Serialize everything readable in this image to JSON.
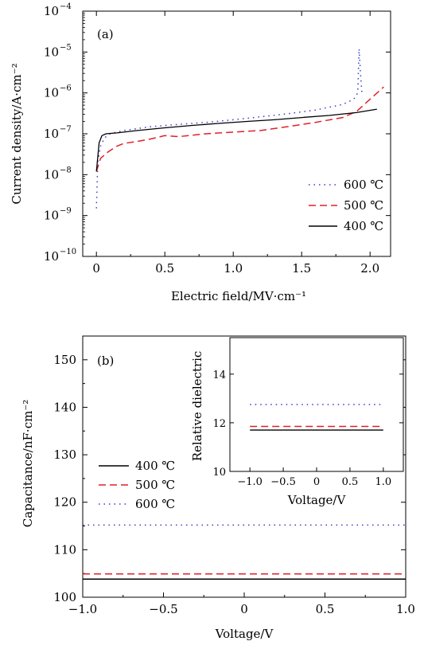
{
  "chart_data": [
    {
      "type": "line",
      "panel_label": "(a)",
      "xlabel": "Electric field/MV·cm⁻¹",
      "ylabel": "Current density/A·cm⁻²",
      "x_scale": "linear",
      "y_scale": "log",
      "xlim": [
        -0.1,
        2.15
      ],
      "ylim": [
        1e-10,
        0.0001
      ],
      "x_ticks": [
        {
          "value": 0.0,
          "label": "0"
        },
        {
          "value": 0.5,
          "label": "0.5"
        },
        {
          "value": 1.0,
          "label": "1.0"
        },
        {
          "value": 1.5,
          "label": "1.5"
        },
        {
          "value": 2.0,
          "label": "2.0"
        }
      ],
      "y_ticks": [
        {
          "value": 1e-10,
          "base": "10",
          "exp": "−10"
        },
        {
          "value": 1e-09,
          "base": "10",
          "exp": "−9"
        },
        {
          "value": 1e-08,
          "base": "10",
          "exp": "−8"
        },
        {
          "value": 1e-07,
          "base": "10",
          "exp": "−7"
        },
        {
          "value": 1e-06,
          "base": "10",
          "exp": "−6"
        },
        {
          "value": 1e-05,
          "base": "10",
          "exp": "−5"
        },
        {
          "value": 0.0001,
          "base": "10",
          "exp": "−4"
        }
      ],
      "legend_position": "bottom-right",
      "series": [
        {
          "name": "600 ℃",
          "color": "#3a3ac8",
          "dash": "dotted",
          "x": [
            0.0,
            0.01,
            0.03,
            0.06,
            0.1,
            0.2,
            0.4,
            0.6,
            0.8,
            1.0,
            1.2,
            1.4,
            1.6,
            1.8,
            1.88,
            1.91,
            1.92,
            1.93,
            1.94
          ],
          "y": [
            1.5e-09,
            2e-08,
            5e-08,
            8e-08,
            1e-07,
            1.2e-07,
            1.5e-07,
            1.7e-07,
            1.9e-07,
            2.2e-07,
            2.6e-07,
            3.1e-07,
            3.8e-07,
            5.2e-07,
            7e-07,
            1e-06,
            1.2e-05,
            3e-06,
            1e-06
          ]
        },
        {
          "name": "500 ℃",
          "color": "#e0202a",
          "dash": "dashed",
          "x": [
            0.0,
            0.03,
            0.08,
            0.15,
            0.2,
            0.3,
            0.4,
            0.5,
            0.6,
            0.8,
            1.0,
            1.2,
            1.4,
            1.6,
            1.8,
            1.9,
            2.0,
            2.1
          ],
          "y": [
            1.2e-08,
            2.5e-08,
            3.5e-08,
            5e-08,
            5.8e-08,
            6.5e-08,
            7.5e-08,
            9e-08,
            8.5e-08,
            1e-07,
            1.1e-07,
            1.2e-07,
            1.5e-07,
            1.9e-07,
            2.5e-07,
            3.5e-07,
            7e-07,
            1.4e-06
          ]
        },
        {
          "name": "400 ℃",
          "color": "#000000",
          "dash": "solid",
          "x": [
            0.0,
            0.02,
            0.04,
            0.07,
            0.15,
            0.3,
            0.5,
            0.7,
            0.9,
            1.1,
            1.3,
            1.5,
            1.7,
            1.9,
            2.05
          ],
          "y": [
            1.2e-08,
            6e-08,
            9e-08,
            1e-07,
            1.05e-07,
            1.2e-07,
            1.4e-07,
            1.6e-07,
            1.8e-07,
            2e-07,
            2.2e-07,
            2.5e-07,
            2.8e-07,
            3.3e-07,
            4e-07
          ]
        }
      ]
    },
    {
      "type": "line",
      "panel_label": "(b)",
      "xlabel": "Voltage/V",
      "ylabel": "Capacitance/nF·cm⁻²",
      "xlim": [
        -1.0,
        1.0
      ],
      "ylim": [
        100,
        155
      ],
      "x_ticks": [
        {
          "value": -1.0,
          "label": "−1.0"
        },
        {
          "value": -0.5,
          "label": "−0.5"
        },
        {
          "value": 0.0,
          "label": "0"
        },
        {
          "value": 0.5,
          "label": "0.5"
        },
        {
          "value": 1.0,
          "label": "1.0"
        }
      ],
      "y_ticks": [
        {
          "value": 100,
          "label": "100"
        },
        {
          "value": 110,
          "label": "110"
        },
        {
          "value": 120,
          "label": "120"
        },
        {
          "value": 130,
          "label": "130"
        },
        {
          "value": 140,
          "label": "140"
        },
        {
          "value": 150,
          "label": "150"
        }
      ],
      "legend_position": "center-left",
      "series": [
        {
          "name": "400 ℃",
          "color": "#000000",
          "dash": "solid",
          "x": [
            -1.0,
            1.0
          ],
          "y": [
            103.8,
            103.8
          ]
        },
        {
          "name": "500 ℃",
          "color": "#e0202a",
          "dash": "dashed",
          "x": [
            -1.0,
            1.0
          ],
          "y": [
            104.9,
            104.9
          ]
        },
        {
          "name": "600 ℃",
          "color": "#3a3ac8",
          "dash": "dotted",
          "x": [
            -1.0,
            1.0
          ],
          "y": [
            115.2,
            115.2
          ]
        }
      ],
      "inset": {
        "xlabel": "Voltage/V",
        "ylabel": "Relative dielectric",
        "xlim": [
          -1.3,
          1.3
        ],
        "ylim": [
          10,
          15.5
        ],
        "x_ticks": [
          {
            "value": -1.0,
            "label": "−1.0"
          },
          {
            "value": -0.5,
            "label": "−0.5"
          },
          {
            "value": 0.0,
            "label": "0"
          },
          {
            "value": 0.5,
            "label": "0.5"
          },
          {
            "value": 1.0,
            "label": "1.0"
          }
        ],
        "y_ticks": [
          {
            "value": 10,
            "label": "10"
          },
          {
            "value": 12,
            "label": "12"
          },
          {
            "value": 14,
            "label": "14"
          }
        ],
        "series": [
          {
            "color": "#000000",
            "dash": "solid",
            "x": [
              -1.0,
              1.0
            ],
            "y": [
              11.7,
              11.7
            ]
          },
          {
            "color": "#e0202a",
            "dash": "dashed",
            "x": [
              -1.0,
              1.0
            ],
            "y": [
              11.85,
              11.85
            ]
          },
          {
            "color": "#3a3ac8",
            "dash": "dotted",
            "x": [
              -1.0,
              1.0
            ],
            "y": [
              12.75,
              12.75
            ]
          }
        ]
      }
    }
  ]
}
